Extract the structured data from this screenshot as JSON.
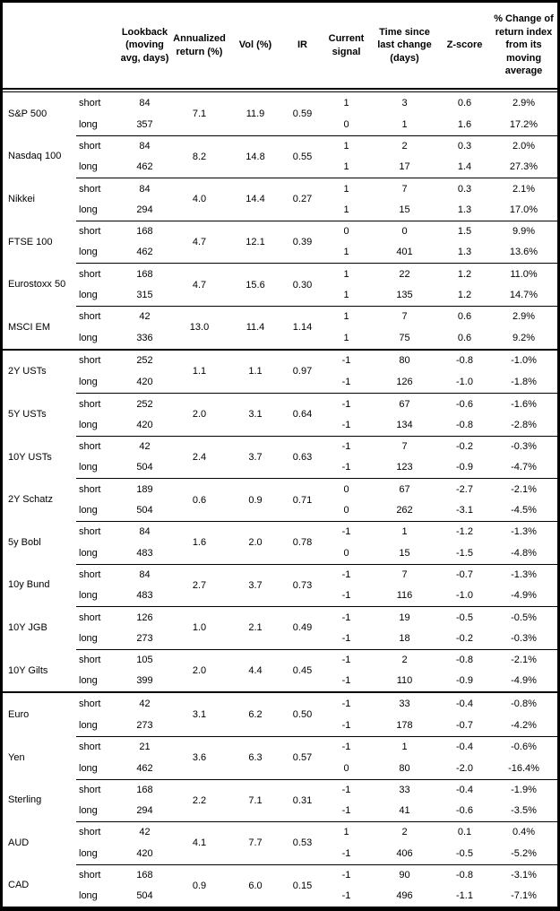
{
  "table": {
    "columns": {
      "lookback": "Lookback (moving avg, days)",
      "annualized_return": "Annualized return (%)",
      "vol": "Vol (%)",
      "ir": "IR",
      "current_signal": "Current signal",
      "time_since": "Time since last change (days)",
      "z_score": "Z-score",
      "pct_change": "% Change of return index from its moving average"
    },
    "row_labels": {
      "short": "short",
      "long": "long"
    },
    "sections": [
      {
        "assets": [
          {
            "name": "S&P 500",
            "annualized_return": "7.1",
            "vol": "11.9",
            "ir": "0.59",
            "short": {
              "lookback": "84",
              "signal": "1",
              "time_since": "3",
              "z_score": "0.6",
              "pct_change": "2.9%"
            },
            "long": {
              "lookback": "357",
              "signal": "0",
              "time_since": "1",
              "z_score": "1.6",
              "pct_change": "17.2%"
            }
          },
          {
            "name": "Nasdaq 100",
            "annualized_return": "8.2",
            "vol": "14.8",
            "ir": "0.55",
            "short": {
              "lookback": "84",
              "signal": "1",
              "time_since": "2",
              "z_score": "0.3",
              "pct_change": "2.0%"
            },
            "long": {
              "lookback": "462",
              "signal": "1",
              "time_since": "17",
              "z_score": "1.4",
              "pct_change": "27.3%"
            }
          },
          {
            "name": "Nikkei",
            "annualized_return": "4.0",
            "vol": "14.4",
            "ir": "0.27",
            "short": {
              "lookback": "84",
              "signal": "1",
              "time_since": "7",
              "z_score": "0.3",
              "pct_change": "2.1%"
            },
            "long": {
              "lookback": "294",
              "signal": "1",
              "time_since": "15",
              "z_score": "1.3",
              "pct_change": "17.0%"
            }
          },
          {
            "name": "FTSE 100",
            "annualized_return": "4.7",
            "vol": "12.1",
            "ir": "0.39",
            "short": {
              "lookback": "168",
              "signal": "0",
              "time_since": "0",
              "z_score": "1.5",
              "pct_change": "9.9%"
            },
            "long": {
              "lookback": "462",
              "signal": "1",
              "time_since": "401",
              "z_score": "1.3",
              "pct_change": "13.6%"
            }
          },
          {
            "name": "Eurostoxx 50",
            "annualized_return": "4.7",
            "vol": "15.6",
            "ir": "0.30",
            "short": {
              "lookback": "168",
              "signal": "1",
              "time_since": "22",
              "z_score": "1.2",
              "pct_change": "11.0%"
            },
            "long": {
              "lookback": "315",
              "signal": "1",
              "time_since": "135",
              "z_score": "1.2",
              "pct_change": "14.7%"
            }
          },
          {
            "name": "MSCI EM",
            "annualized_return": "13.0",
            "vol": "11.4",
            "ir": "1.14",
            "short": {
              "lookback": "42",
              "signal": "1",
              "time_since": "7",
              "z_score": "0.6",
              "pct_change": "2.9%"
            },
            "long": {
              "lookback": "336",
              "signal": "1",
              "time_since": "75",
              "z_score": "0.6",
              "pct_change": "9.2%"
            }
          }
        ]
      },
      {
        "assets": [
          {
            "name": "2Y USTs",
            "annualized_return": "1.1",
            "vol": "1.1",
            "ir": "0.97",
            "short": {
              "lookback": "252",
              "signal": "-1",
              "time_since": "80",
              "z_score": "-0.8",
              "pct_change": "-1.0%"
            },
            "long": {
              "lookback": "420",
              "signal": "-1",
              "time_since": "126",
              "z_score": "-1.0",
              "pct_change": "-1.8%"
            }
          },
          {
            "name": "5Y USTs",
            "annualized_return": "2.0",
            "vol": "3.1",
            "ir": "0.64",
            "short": {
              "lookback": "252",
              "signal": "-1",
              "time_since": "67",
              "z_score": "-0.6",
              "pct_change": "-1.6%"
            },
            "long": {
              "lookback": "420",
              "signal": "-1",
              "time_since": "134",
              "z_score": "-0.8",
              "pct_change": "-2.8%"
            }
          },
          {
            "name": "10Y USTs",
            "annualized_return": "2.4",
            "vol": "3.7",
            "ir": "0.63",
            "short": {
              "lookback": "42",
              "signal": "-1",
              "time_since": "7",
              "z_score": "-0.2",
              "pct_change": "-0.3%"
            },
            "long": {
              "lookback": "504",
              "signal": "-1",
              "time_since": "123",
              "z_score": "-0.9",
              "pct_change": "-4.7%"
            }
          },
          {
            "name": "2Y Schatz",
            "annualized_return": "0.6",
            "vol": "0.9",
            "ir": "0.71",
            "short": {
              "lookback": "189",
              "signal": "0",
              "time_since": "67",
              "z_score": "-2.7",
              "pct_change": "-2.1%"
            },
            "long": {
              "lookback": "504",
              "signal": "0",
              "time_since": "262",
              "z_score": "-3.1",
              "pct_change": "-4.5%"
            }
          },
          {
            "name": "5y Bobl",
            "annualized_return": "1.6",
            "vol": "2.0",
            "ir": "0.78",
            "short": {
              "lookback": "84",
              "signal": "-1",
              "time_since": "1",
              "z_score": "-1.2",
              "pct_change": "-1.3%"
            },
            "long": {
              "lookback": "483",
              "signal": "0",
              "time_since": "15",
              "z_score": "-1.5",
              "pct_change": "-4.8%"
            }
          },
          {
            "name": "10y Bund",
            "annualized_return": "2.7",
            "vol": "3.7",
            "ir": "0.73",
            "short": {
              "lookback": "84",
              "signal": "-1",
              "time_since": "7",
              "z_score": "-0.7",
              "pct_change": "-1.3%"
            },
            "long": {
              "lookback": "483",
              "signal": "-1",
              "time_since": "116",
              "z_score": "-1.0",
              "pct_change": "-4.9%"
            }
          },
          {
            "name": "10Y JGB",
            "annualized_return": "1.0",
            "vol": "2.1",
            "ir": "0.49",
            "short": {
              "lookback": "126",
              "signal": "-1",
              "time_since": "19",
              "z_score": "-0.5",
              "pct_change": "-0.5%"
            },
            "long": {
              "lookback": "273",
              "signal": "-1",
              "time_since": "18",
              "z_score": "-0.2",
              "pct_change": "-0.3%"
            }
          },
          {
            "name": "10Y Gilts",
            "annualized_return": "2.0",
            "vol": "4.4",
            "ir": "0.45",
            "short": {
              "lookback": "105",
              "signal": "-1",
              "time_since": "2",
              "z_score": "-0.8",
              "pct_change": "-2.1%"
            },
            "long": {
              "lookback": "399",
              "signal": "-1",
              "time_since": "110",
              "z_score": "-0.9",
              "pct_change": "-4.9%"
            }
          }
        ]
      },
      {
        "assets": [
          {
            "name": "Euro",
            "annualized_return": "3.1",
            "vol": "6.2",
            "ir": "0.50",
            "short": {
              "lookback": "42",
              "signal": "-1",
              "time_since": "33",
              "z_score": "-0.4",
              "pct_change": "-0.8%"
            },
            "long": {
              "lookback": "273",
              "signal": "-1",
              "time_since": "178",
              "z_score": "-0.7",
              "pct_change": "-4.2%"
            }
          },
          {
            "name": "Yen",
            "annualized_return": "3.6",
            "vol": "6.3",
            "ir": "0.57",
            "short": {
              "lookback": "21",
              "signal": "-1",
              "time_since": "1",
              "z_score": "-0.4",
              "pct_change": "-0.6%"
            },
            "long": {
              "lookback": "462",
              "signal": "0",
              "time_since": "80",
              "z_score": "-2.0",
              "pct_change": "-16.4%"
            }
          },
          {
            "name": "Sterling",
            "annualized_return": "2.2",
            "vol": "7.1",
            "ir": "0.31",
            "short": {
              "lookback": "168",
              "signal": "-1",
              "time_since": "33",
              "z_score": "-0.4",
              "pct_change": "-1.9%"
            },
            "long": {
              "lookback": "294",
              "signal": "-1",
              "time_since": "41",
              "z_score": "-0.6",
              "pct_change": "-3.5%"
            }
          },
          {
            "name": "AUD",
            "annualized_return": "4.1",
            "vol": "7.7",
            "ir": "0.53",
            "short": {
              "lookback": "42",
              "signal": "1",
              "time_since": "2",
              "z_score": "0.1",
              "pct_change": "0.4%"
            },
            "long": {
              "lookback": "420",
              "signal": "-1",
              "time_since": "406",
              "z_score": "-0.5",
              "pct_change": "-5.2%"
            }
          },
          {
            "name": "CAD",
            "annualized_return": "0.9",
            "vol": "6.0",
            "ir": "0.15",
            "short": {
              "lookback": "168",
              "signal": "-1",
              "time_since": "90",
              "z_score": "-0.8",
              "pct_change": "-3.1%"
            },
            "long": {
              "lookback": "504",
              "signal": "-1",
              "time_since": "496",
              "z_score": "-1.1",
              "pct_change": "-7.1%"
            }
          }
        ]
      }
    ]
  }
}
